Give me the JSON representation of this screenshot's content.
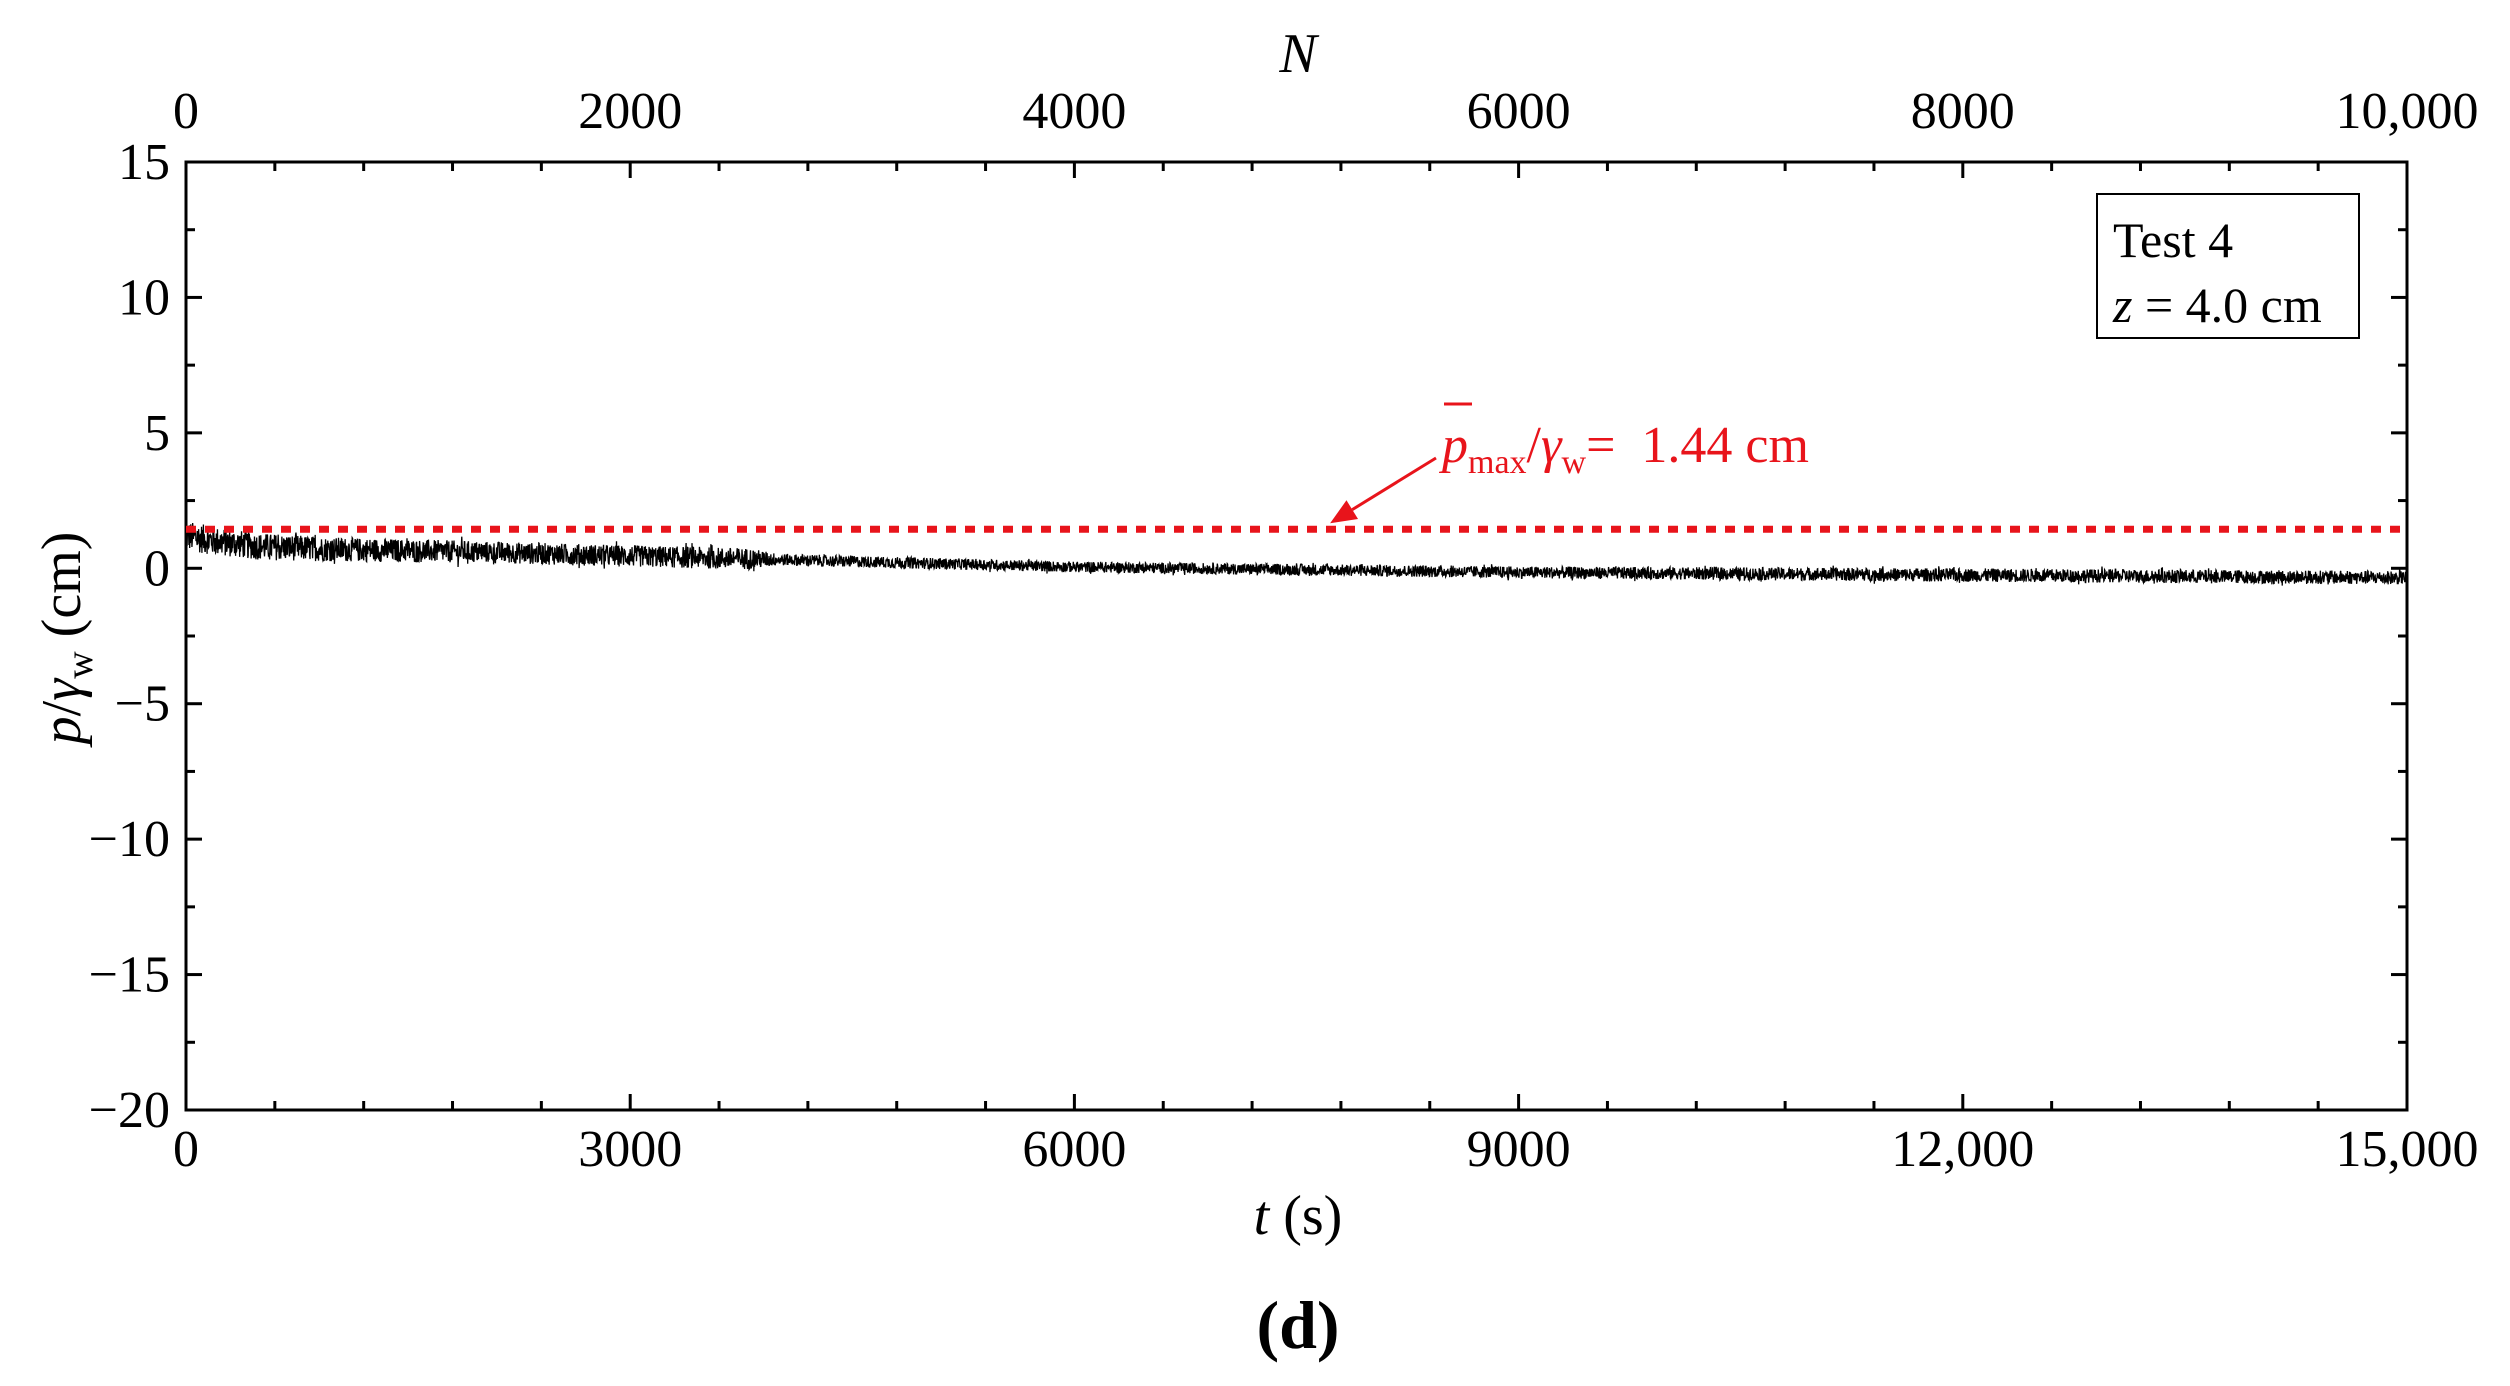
{
  "chart_data": {
    "type": "line",
    "panel_label": "(d)",
    "xlabel": {
      "symbol": "t",
      "unit": "(s)"
    },
    "ylabel": {
      "var": "p",
      "sep": "/",
      "denom": "γ",
      "denom_sub": "w",
      "unit": "(cm)"
    },
    "top_axis_label": "N",
    "xlim": [
      0,
      15000
    ],
    "ylim": [
      -20,
      15
    ],
    "top_xlim": [
      0,
      10000
    ],
    "x_ticks": [
      0,
      3000,
      6000,
      9000,
      12000,
      15000
    ],
    "x_tick_labels": [
      "0",
      "3000",
      "6000",
      "9000",
      "12,000",
      "15,000"
    ],
    "x_minor_step": 600,
    "top_ticks": [
      0,
      2000,
      4000,
      6000,
      8000,
      10000
    ],
    "top_tick_labels": [
      "0",
      "2000",
      "4000",
      "6000",
      "8000",
      "10,000"
    ],
    "top_minor_step": 400,
    "y_ticks": [
      -20,
      -15,
      -10,
      -5,
      0,
      5,
      10,
      15
    ],
    "y_tick_labels": [
      "−20",
      "−15",
      "−10",
      "−5",
      "0",
      "5",
      "10",
      "15"
    ],
    "y_minor_step": 2.5,
    "legend": {
      "line1": "Test 4",
      "line2_var": "z",
      "line2_rest": " = 4.0 cm",
      "placement": "top-right"
    },
    "reference_line": {
      "value": 1.44,
      "color": "#e8141b",
      "style": "dotted",
      "label_var": "p",
      "label_sub": "max",
      "label_sep": "/",
      "label_denom": "γ",
      "label_denom_sub": "w",
      "label_value": "=  1.44 cm",
      "arrow_target_x": 7700
    },
    "series": [
      {
        "name": "p/γw",
        "color": "#000000",
        "trend": {
          "t": [
            0,
            200,
            500,
            1000,
            2000,
            3000,
            3800,
            4500,
            6000,
            7500,
            9000,
            10500,
            12000,
            13500,
            15000
          ],
          "value": [
            1.2,
            1.0,
            0.8,
            0.7,
            0.6,
            0.45,
            0.35,
            0.25,
            0.05,
            -0.05,
            -0.15,
            -0.2,
            -0.25,
            -0.3,
            -0.35
          ]
        },
        "envelope": {
          "t": [
            0,
            500,
            1000,
            2000,
            3800,
            4000,
            6000,
            9000,
            12000,
            15000
          ],
          "half_width": [
            0.55,
            0.5,
            0.45,
            0.4,
            0.4,
            0.22,
            0.2,
            0.22,
            0.25,
            0.25
          ]
        }
      }
    ]
  }
}
